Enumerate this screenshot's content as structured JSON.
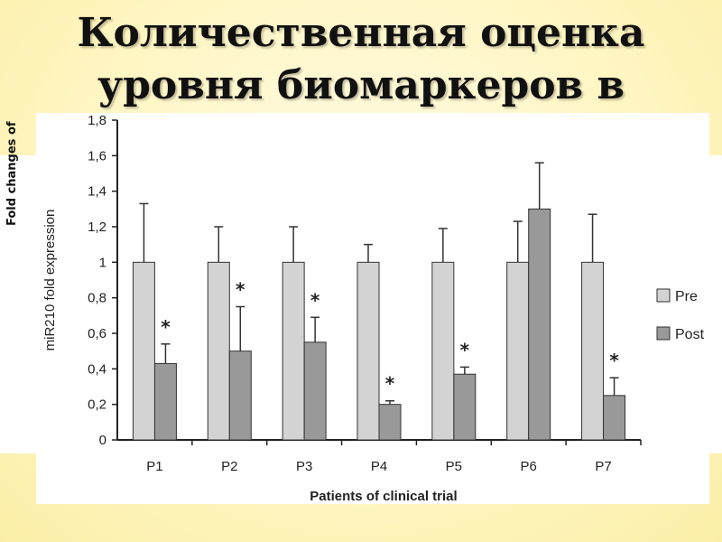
{
  "slide": {
    "title_line1": "Количественная оценка",
    "title_line2": "уровня биомаркеров в"
  },
  "background_panel": {
    "left_label": "Fold changes of"
  },
  "chart_data": {
    "type": "bar",
    "title": "",
    "xlabel": "Patients of clinical trial",
    "ylabel": "miR210 fold expression",
    "ylim": [
      0,
      1.8
    ],
    "yticks": [
      "0",
      "0,2",
      "0,4",
      "0,6",
      "0,8",
      "1",
      "1,2",
      "1,4",
      "1,6",
      "1,8"
    ],
    "ytick_values": [
      0,
      0.2,
      0.4,
      0.6,
      0.8,
      1.0,
      1.2,
      1.4,
      1.6,
      1.8
    ],
    "categories": [
      "P1",
      "P2",
      "P3",
      "P4",
      "P5",
      "P6",
      "P7"
    ],
    "series": [
      {
        "name": "Pre",
        "color": "#d3d3d3",
        "values": [
          1.0,
          1.0,
          1.0,
          1.0,
          1.0,
          1.0,
          1.0
        ],
        "errors": [
          0.33,
          0.2,
          0.2,
          0.1,
          0.19,
          0.23,
          0.27
        ]
      },
      {
        "name": "Post",
        "color": "#999999",
        "values": [
          0.43,
          0.5,
          0.55,
          0.2,
          0.37,
          1.3,
          0.25
        ],
        "errors": [
          0.11,
          0.25,
          0.14,
          0.02,
          0.04,
          0.26,
          0.1
        ]
      }
    ],
    "significance": [
      "*",
      "*",
      "*",
      "*",
      "*",
      "",
      "*"
    ],
    "grid": false,
    "legend_position": "right"
  }
}
